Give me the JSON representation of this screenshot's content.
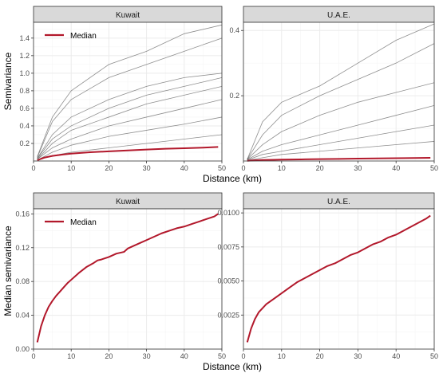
{
  "colors": {
    "median": "#b2182b",
    "lines": "#333333",
    "strip_fill": "#d9d9d9",
    "grid_major": "#ebebeb",
    "grid_minor": "#f5f5f5",
    "panel_border": "#333333"
  },
  "top": {
    "ylabel": "Semivariance",
    "xlabel": "Distance (km)",
    "legend_label": "Median"
  },
  "bottom": {
    "ylabel": "Median semivariance",
    "xlabel": "Distance (km)",
    "legend_label": "Median"
  },
  "chart_data": [
    {
      "type": "line",
      "facet": "Kuwait",
      "xlabel": "Distance (km)",
      "ylabel": "Semivariance",
      "xlim": [
        0,
        50
      ],
      "ylim": [
        0,
        1.58
      ],
      "xticks": [
        0,
        10,
        20,
        30,
        40,
        50
      ],
      "yticks": [
        0.2,
        0.4,
        0.6,
        0.8,
        1.0,
        1.2,
        1.4
      ],
      "ytick_labels": [
        "0.2",
        "0.4",
        "0.6",
        "0.8",
        "1.0",
        "1.2",
        "1.4"
      ],
      "grid": true,
      "legend": "top-left",
      "series": [
        {
          "name": "Median",
          "x": [
            1,
            2,
            3,
            5,
            8,
            10,
            15,
            20,
            25,
            30,
            35,
            40,
            45,
            49
          ],
          "values": [
            0.008,
            0.025,
            0.04,
            0.058,
            0.075,
            0.084,
            0.1,
            0.11,
            0.12,
            0.13,
            0.14,
            0.145,
            0.152,
            0.16
          ]
        },
        {
          "x": [
            1,
            5,
            10,
            20,
            30,
            40,
            50
          ],
          "values": [
            0.05,
            0.5,
            0.8,
            1.1,
            1.25,
            1.45,
            1.55
          ]
        },
        {
          "x": [
            1,
            5,
            10,
            20,
            30,
            40,
            50
          ],
          "values": [
            0.04,
            0.45,
            0.7,
            0.95,
            1.1,
            1.25,
            1.4
          ]
        },
        {
          "x": [
            1,
            5,
            10,
            20,
            30,
            40,
            50
          ],
          "values": [
            0.03,
            0.3,
            0.5,
            0.7,
            0.85,
            0.95,
            1.0
          ]
        },
        {
          "x": [
            1,
            5,
            10,
            20,
            30,
            40,
            50
          ],
          "values": [
            0.03,
            0.25,
            0.4,
            0.6,
            0.75,
            0.85,
            0.95
          ]
        },
        {
          "x": [
            1,
            5,
            10,
            20,
            30,
            40,
            50
          ],
          "values": [
            0.02,
            0.2,
            0.35,
            0.5,
            0.65,
            0.75,
            0.85
          ]
        },
        {
          "x": [
            1,
            5,
            10,
            20,
            30,
            40,
            50
          ],
          "values": [
            0.02,
            0.15,
            0.25,
            0.4,
            0.5,
            0.6,
            0.7
          ]
        },
        {
          "x": [
            1,
            5,
            10,
            20,
            30,
            40,
            50
          ],
          "values": [
            0.01,
            0.1,
            0.18,
            0.28,
            0.35,
            0.42,
            0.5
          ]
        },
        {
          "x": [
            1,
            5,
            10,
            20,
            30,
            40,
            50
          ],
          "values": [
            0.01,
            0.06,
            0.1,
            0.15,
            0.2,
            0.25,
            0.3
          ]
        }
      ]
    },
    {
      "type": "line",
      "facet": "U.A.E.",
      "xlabel": "Distance (km)",
      "ylabel": "Semivariance",
      "xlim": [
        0,
        50
      ],
      "ylim": [
        0,
        0.425
      ],
      "xticks": [
        0,
        10,
        20,
        30,
        40,
        50
      ],
      "yticks": [
        0.2,
        0.4
      ],
      "ytick_labels": [
        "0.2",
        "0.4"
      ],
      "grid": true,
      "series": [
        {
          "name": "Median",
          "x": [
            1,
            2,
            3,
            5,
            8,
            10,
            15,
            20,
            25,
            30,
            35,
            40,
            45,
            49
          ],
          "values": [
            0.0005,
            0.0015,
            0.0022,
            0.003,
            0.0037,
            0.0042,
            0.005,
            0.0058,
            0.0065,
            0.0072,
            0.0078,
            0.0085,
            0.0092,
            0.0098
          ]
        },
        {
          "x": [
            1,
            5,
            10,
            20,
            30,
            40,
            50
          ],
          "values": [
            0.005,
            0.12,
            0.18,
            0.23,
            0.3,
            0.37,
            0.42
          ]
        },
        {
          "x": [
            1,
            5,
            10,
            20,
            30,
            40,
            50
          ],
          "values": [
            0.005,
            0.08,
            0.14,
            0.2,
            0.25,
            0.3,
            0.36
          ]
        },
        {
          "x": [
            1,
            5,
            10,
            20,
            30,
            40,
            50
          ],
          "values": [
            0.005,
            0.05,
            0.09,
            0.14,
            0.18,
            0.21,
            0.24
          ]
        },
        {
          "x": [
            1,
            5,
            10,
            20,
            30,
            40,
            50
          ],
          "values": [
            0.004,
            0.03,
            0.05,
            0.08,
            0.11,
            0.14,
            0.17
          ]
        },
        {
          "x": [
            1,
            5,
            10,
            20,
            30,
            40,
            50
          ],
          "values": [
            0.003,
            0.02,
            0.03,
            0.05,
            0.07,
            0.09,
            0.11
          ]
        },
        {
          "x": [
            1,
            5,
            10,
            20,
            30,
            40,
            50
          ],
          "values": [
            0.002,
            0.01,
            0.02,
            0.03,
            0.04,
            0.05,
            0.06
          ]
        }
      ]
    },
    {
      "type": "line",
      "facet": "Kuwait",
      "xlabel": "Distance (km)",
      "ylabel": "Median semivariance",
      "xlim": [
        0,
        50
      ],
      "ylim": [
        0,
        0.166
      ],
      "xticks": [
        0,
        10,
        20,
        30,
        40,
        50
      ],
      "yticks": [
        0.0,
        0.04,
        0.08,
        0.12,
        0.16
      ],
      "ytick_labels": [
        "0.00",
        "0.04",
        "0.08",
        "0.12",
        "0.16"
      ],
      "grid": true,
      "legend": "top-left",
      "series": [
        {
          "name": "Median",
          "x": [
            1,
            2,
            3,
            4,
            5,
            6,
            7,
            8,
            9,
            10,
            12,
            14,
            16,
            17,
            18,
            20,
            22,
            24,
            25,
            26,
            28,
            30,
            32,
            34,
            36,
            38,
            40,
            42,
            44,
            46,
            48,
            49
          ],
          "values": [
            0.008,
            0.027,
            0.04,
            0.05,
            0.057,
            0.063,
            0.068,
            0.073,
            0.078,
            0.082,
            0.09,
            0.097,
            0.102,
            0.105,
            0.106,
            0.109,
            0.113,
            0.115,
            0.119,
            0.121,
            0.125,
            0.129,
            0.133,
            0.137,
            0.14,
            0.143,
            0.145,
            0.148,
            0.151,
            0.154,
            0.157,
            0.16
          ]
        }
      ]
    },
    {
      "type": "line",
      "facet": "U.A.E.",
      "xlabel": "Distance (km)",
      "ylabel": "Median semivariance",
      "xlim": [
        0,
        50
      ],
      "ylim": [
        0,
        0.0103
      ],
      "xticks": [
        0,
        10,
        20,
        30,
        40,
        50
      ],
      "yticks": [
        0.0025,
        0.005,
        0.0075,
        0.01
      ],
      "ytick_labels": [
        "0.0025",
        "0.0050",
        "0.0075",
        "0.0100"
      ],
      "grid": true,
      "series": [
        {
          "name": "Median",
          "x": [
            1,
            2,
            3,
            4,
            5,
            6,
            8,
            10,
            12,
            14,
            16,
            18,
            20,
            22,
            24,
            26,
            28,
            30,
            32,
            34,
            36,
            38,
            40,
            42,
            44,
            46,
            48,
            49
          ],
          "values": [
            0.0005,
            0.0015,
            0.0022,
            0.0027,
            0.003,
            0.0033,
            0.0037,
            0.0041,
            0.0045,
            0.0049,
            0.0052,
            0.0055,
            0.0058,
            0.0061,
            0.0063,
            0.0066,
            0.0069,
            0.0071,
            0.0074,
            0.0077,
            0.0079,
            0.0082,
            0.0084,
            0.0087,
            0.009,
            0.0093,
            0.0096,
            0.0098
          ]
        }
      ]
    }
  ]
}
